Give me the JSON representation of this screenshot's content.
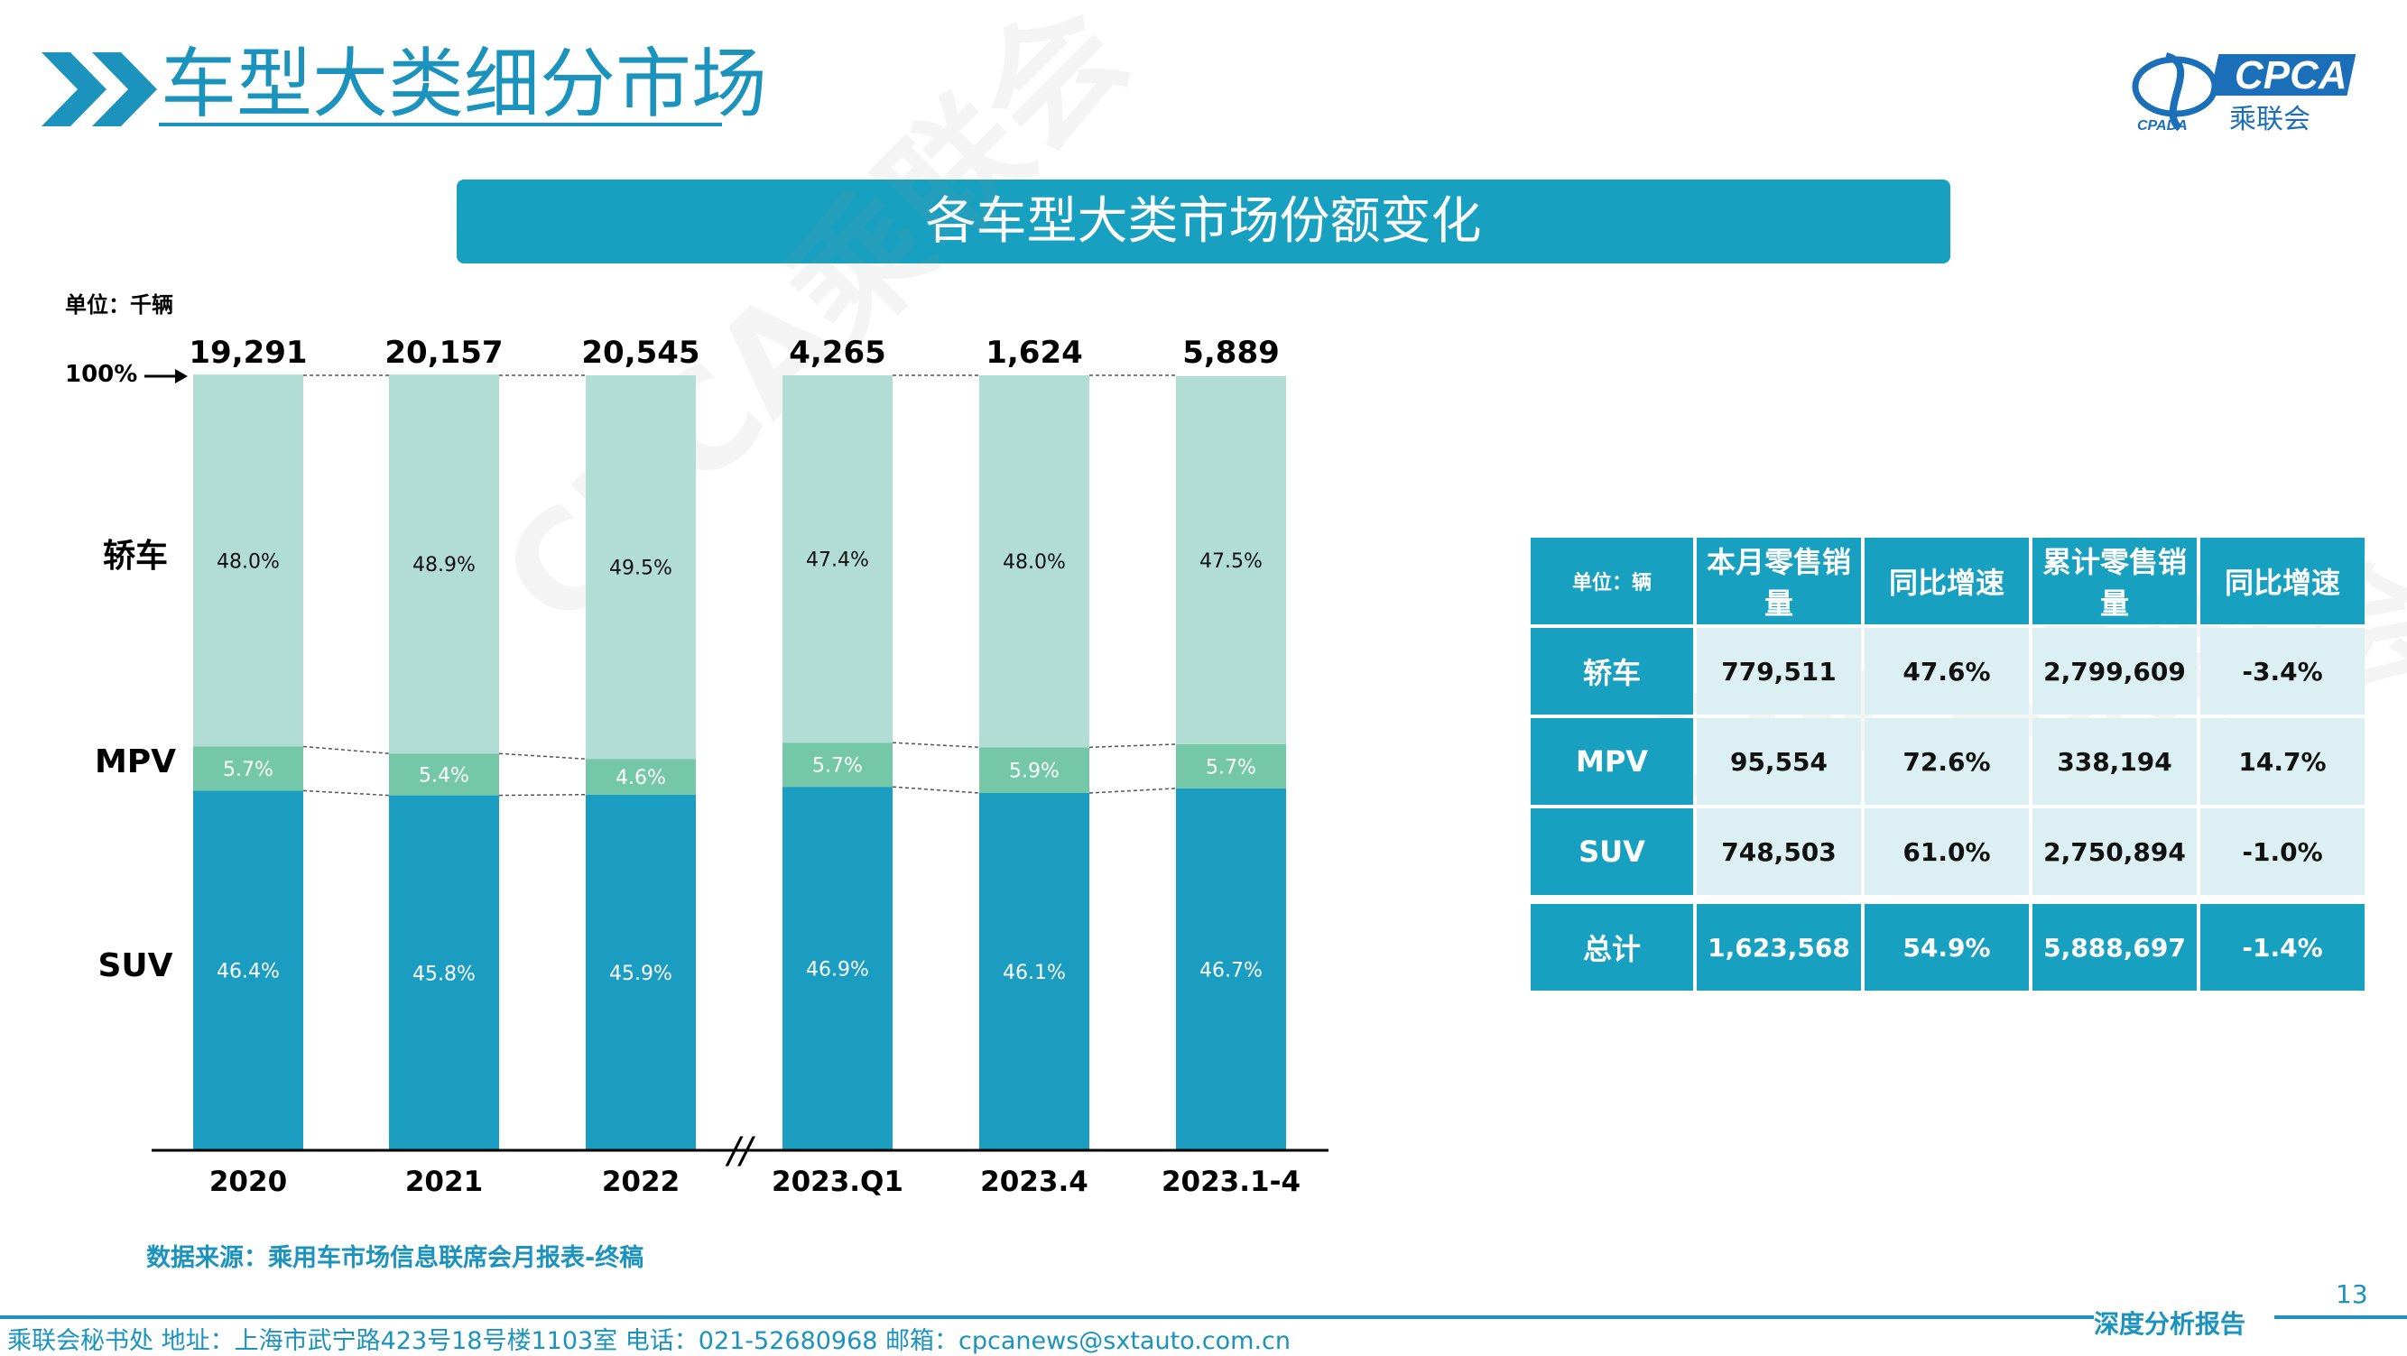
{
  "header": {
    "title": "车型大类细分市场",
    "logo_text": "CPCA",
    "logo_sub": "乘联会",
    "logo_left": "CPADA"
  },
  "banner": {
    "title": "各车型大类市场份额变化"
  },
  "chart_data": {
    "type": "bar",
    "stacked": "percent",
    "unit_label": "单位：千辆",
    "top_marker": "100%",
    "categories": [
      "2020",
      "2021",
      "2022",
      "2023.Q1",
      "2023.4",
      "2023.1-4"
    ],
    "totals": [
      "19,291",
      "20,157",
      "20,545",
      "4,265",
      "1,624",
      "5,889"
    ],
    "axis_break": "//",
    "series": [
      {
        "name": "SUV",
        "values": [
          46.4,
          45.8,
          45.9,
          46.9,
          46.1,
          46.7
        ],
        "labels": [
          "46.4%",
          "45.8%",
          "45.9%",
          "46.9%",
          "46.1%",
          "46.7%"
        ],
        "color": "#1a9dc0"
      },
      {
        "name": "MPV",
        "values": [
          5.7,
          5.4,
          4.6,
          5.7,
          5.9,
          5.7
        ],
        "labels": [
          "5.7%",
          "5.4%",
          "4.6%",
          "5.7%",
          "5.9%",
          "5.7%"
        ],
        "color": "#74c8a8"
      },
      {
        "name": "轿车",
        "values": [
          48.0,
          48.9,
          49.5,
          47.4,
          48.0,
          47.5
        ],
        "labels": [
          "48.0%",
          "48.9%",
          "49.5%",
          "47.4%",
          "48.0%",
          "47.5%"
        ],
        "color": "#b2ddd5"
      }
    ],
    "ylim": [
      0,
      100
    ],
    "legend": "left"
  },
  "source": "数据来源：乘用车市场信息联席会月报表-终稿",
  "table": {
    "unit": "单位：辆",
    "headers": [
      "本月零售销量",
      "同比增速",
      "累计零售销量",
      "同比增速"
    ],
    "rows": [
      {
        "name": "轿车",
        "cells": [
          "779,511",
          "47.6%",
          "2,799,609",
          "-3.4%"
        ]
      },
      {
        "name": "MPV",
        "cells": [
          "95,554",
          "72.6%",
          "338,194",
          "14.7%"
        ]
      },
      {
        "name": "SUV",
        "cells": [
          "748,503",
          "61.0%",
          "2,750,894",
          "-1.0%"
        ]
      }
    ],
    "total": {
      "name": "总计",
      "cells": [
        "1,623,568",
        "54.9%",
        "5,888,697",
        "-1.4%"
      ]
    }
  },
  "watermark": "CPCA乘联会",
  "footer": {
    "text": "乘联会秘书处   地址：上海市武宁路423号18号楼1103室   电话：021-52680968    邮箱：cpcanews@sxtauto.com.cn",
    "report": "深度分析报告",
    "page_number": "13"
  }
}
